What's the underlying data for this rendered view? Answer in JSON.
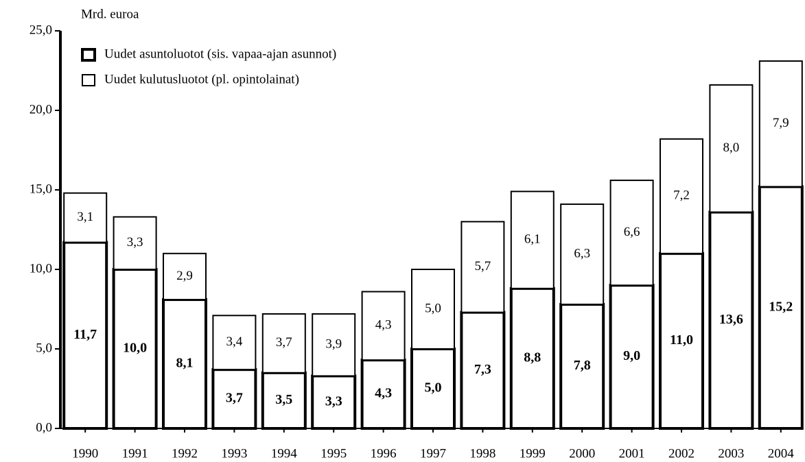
{
  "chart_data": {
    "type": "stacked_bar",
    "y_label": "Mrd. euroa",
    "categories": [
      "1990",
      "1991",
      "1992",
      "1993",
      "1994",
      "1995",
      "1996",
      "1997",
      "1998",
      "1999",
      "2000",
      "2001",
      "2002",
      "2003",
      "2004"
    ],
    "series": [
      {
        "name": "Uudet asuntoluotot (sis. vapaa-ajan asunnot)",
        "color": "#ffffff",
        "values": [
          11.7,
          10.0,
          8.1,
          3.7,
          3.5,
          3.3,
          4.3,
          5.0,
          7.3,
          8.8,
          7.8,
          9.0,
          11.0,
          13.6,
          15.2
        ],
        "value_labels": [
          "11,7",
          "10,0",
          "8,1",
          "3,7",
          "3,5",
          "3,3",
          "4,3",
          "5,0",
          "7,3",
          "8,8",
          "7,8",
          "9,0",
          "11,0",
          "13,6",
          "15,2"
        ]
      },
      {
        "name": "Uudet kulutusluotot (pl. opintolainat)",
        "color": "#ffffff",
        "values": [
          3.1,
          3.3,
          2.9,
          3.4,
          3.7,
          3.9,
          4.3,
          5.0,
          5.7,
          6.1,
          6.3,
          6.6,
          7.2,
          8.0,
          7.9
        ],
        "value_labels": [
          "3,1",
          "3,3",
          "2,9",
          "3,4",
          "3,7",
          "3,9",
          "4,3",
          "5,0",
          "5,7",
          "6,1",
          "6,3",
          "6,6",
          "7,2",
          "8,0",
          "7,9"
        ]
      }
    ],
    "ylim": [
      0,
      25
    ],
    "yticks": [
      {
        "value": 0,
        "label": "0,0"
      },
      {
        "value": 5,
        "label": "5,0"
      },
      {
        "value": 10,
        "label": "10,0"
      },
      {
        "value": 15,
        "label": "15,0"
      },
      {
        "value": 20,
        "label": "20,0"
      },
      {
        "value": 25,
        "label": "25,0"
      }
    ],
    "legend": "upper left"
  }
}
